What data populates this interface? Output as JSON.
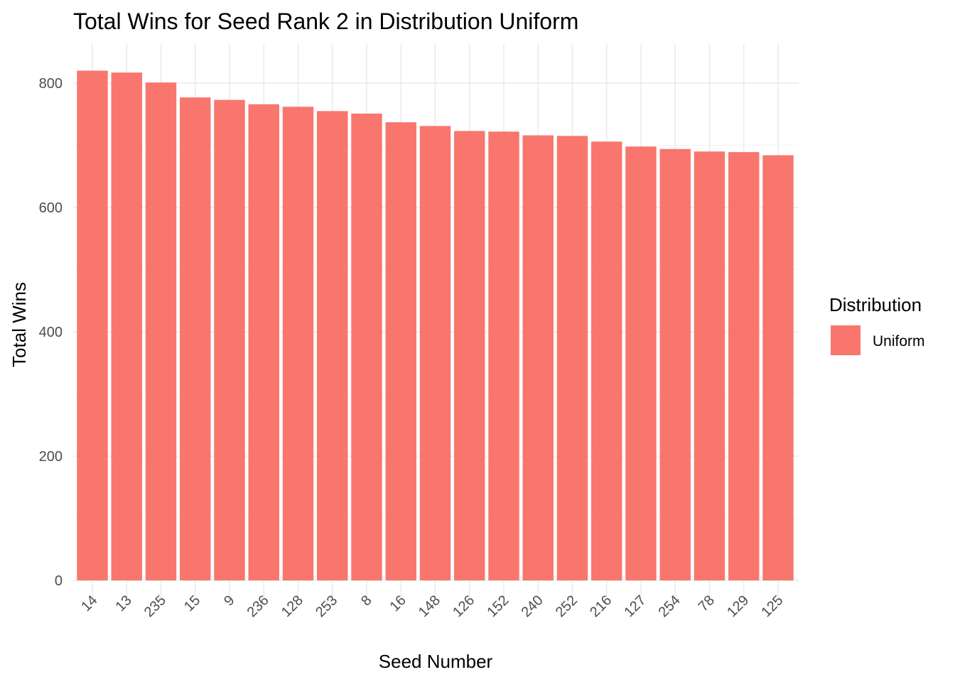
{
  "chart_data": {
    "type": "bar",
    "title": "Total Wins for Seed Rank 2 in Distribution Uniform",
    "xlabel": "Seed Number",
    "ylabel": "Total Wins",
    "categories": [
      "14",
      "13",
      "235",
      "15",
      "9",
      "236",
      "128",
      "253",
      "8",
      "16",
      "148",
      "126",
      "152",
      "240",
      "252",
      "216",
      "127",
      "254",
      "78",
      "129",
      "125"
    ],
    "series": [
      {
        "name": "Uniform",
        "values": [
          820,
          817,
          801,
          777,
          773,
          766,
          762,
          755,
          751,
          737,
          731,
          723,
          722,
          716,
          715,
          706,
          698,
          694,
          690,
          689,
          684
        ],
        "color": "#F8766D"
      }
    ],
    "ylim": [
      0,
      860
    ],
    "yticks": [
      0,
      200,
      400,
      600,
      800
    ],
    "grid": true,
    "legend": {
      "title": "Distribution",
      "position": "right"
    }
  }
}
